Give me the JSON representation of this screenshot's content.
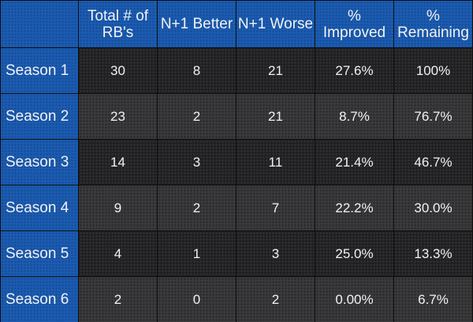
{
  "table": {
    "headers": [
      "",
      "Total # of RB's",
      "N+1 Better",
      "N+1 Worse",
      "% Improved",
      "% Remaining"
    ],
    "rows": [
      {
        "label": "Season 1",
        "values": [
          "30",
          "8",
          "21",
          "27.6%",
          "100%"
        ]
      },
      {
        "label": "Season 2",
        "values": [
          "23",
          "2",
          "21",
          "8.7%",
          "76.7%"
        ]
      },
      {
        "label": "Season 3",
        "values": [
          "14",
          "3",
          "11",
          "21.4%",
          "46.7%"
        ]
      },
      {
        "label": "Season 4",
        "values": [
          "9",
          "2",
          "7",
          "22.2%",
          "30.0%"
        ]
      },
      {
        "label": "Season 5",
        "values": [
          "4",
          "1",
          "3",
          "25.0%",
          "13.3%"
        ]
      },
      {
        "label": "Season 6",
        "values": [
          "2",
          "0",
          "2",
          "0.00%",
          "6.7%"
        ]
      }
    ]
  },
  "colors": {
    "header_blue": "#1b5cb3",
    "row_dark": "#1f1f21",
    "row_light": "#3b3b3d",
    "text": "#f2f2f2"
  }
}
